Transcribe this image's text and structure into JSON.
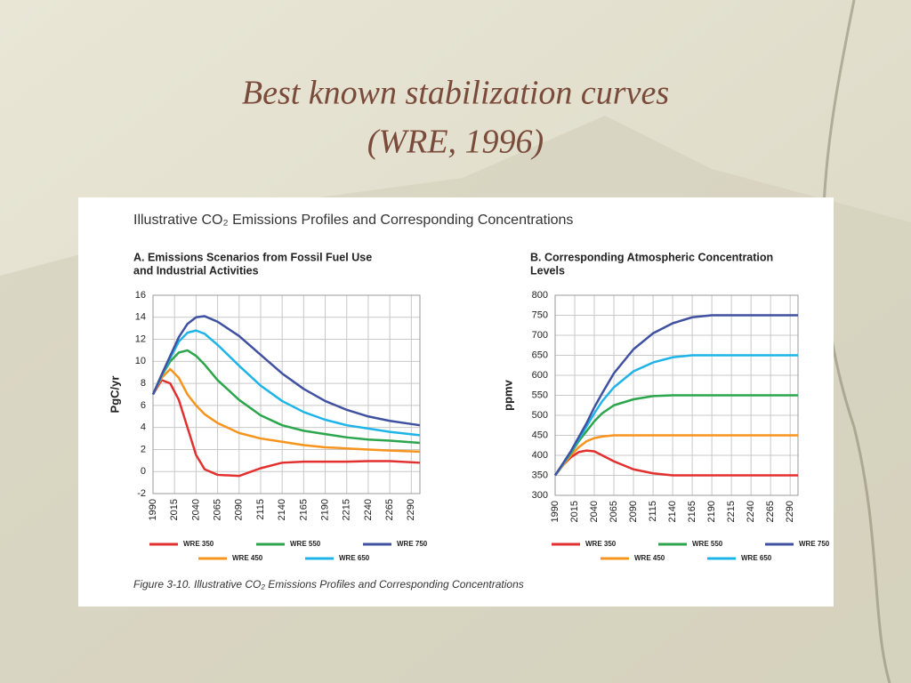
{
  "slide": {
    "title_lines": [
      "Best known stabilization curves",
      "(WRE, 1996)"
    ]
  },
  "figure": {
    "title": "Illustrative CO₂ Emissions Profiles and Corresponding Concentrations",
    "caption": "Figure 3-10.  Illustrative CO₂ Emissions Profiles and Corresponding Concentrations"
  },
  "chart_data": [
    {
      "type": "line",
      "title": [
        "A. Emissions Scenarios from Fossil Fuel Use",
        "and Industrial Activities"
      ],
      "y_label": "PgC/yr",
      "x": [
        1990,
        2000,
        2010,
        2020,
        2030,
        2040,
        2050,
        2065,
        2090,
        2115,
        2140,
        2165,
        2190,
        2215,
        2240,
        2265,
        2300
      ],
      "xlim": [
        1990,
        2300
      ],
      "xticks": [
        1990,
        2015,
        2040,
        2065,
        2090,
        2115,
        2140,
        2165,
        2190,
        2215,
        2240,
        2265,
        2290
      ],
      "ylim": [
        -2,
        16
      ],
      "yticks": [
        -2,
        0,
        2,
        4,
        6,
        8,
        10,
        12,
        14,
        16
      ],
      "grid": true,
      "series": [
        {
          "name": "WRE 350",
          "color": "#e2302f",
          "values": [
            7,
            8.3,
            8.0,
            6.5,
            4,
            1.5,
            0.2,
            -0.3,
            -0.4,
            0.3,
            0.8,
            0.9,
            0.9,
            0.9,
            0.95,
            0.95,
            0.8
          ]
        },
        {
          "name": "WRE 450",
          "color": "#f7941d",
          "values": [
            7,
            8.5,
            9.3,
            8.5,
            7,
            6,
            5.2,
            4.4,
            3.5,
            3,
            2.7,
            2.4,
            2.2,
            2.1,
            2,
            1.9,
            1.8
          ]
        },
        {
          "name": "WRE 550",
          "color": "#2ca64c",
          "values": [
            7,
            8.7,
            10,
            10.8,
            11,
            10.5,
            9.7,
            8.3,
            6.5,
            5.1,
            4.2,
            3.7,
            3.4,
            3.1,
            2.9,
            2.8,
            2.6
          ]
        },
        {
          "name": "WRE 650",
          "color": "#1fb4e8",
          "values": [
            7,
            8.7,
            10.3,
            11.8,
            12.6,
            12.8,
            12.5,
            11.5,
            9.6,
            7.8,
            6.4,
            5.4,
            4.7,
            4.2,
            3.9,
            3.6,
            3.3
          ]
        },
        {
          "name": "WRE 750",
          "color": "#3f51a0",
          "values": [
            7,
            8.8,
            10.5,
            12.2,
            13.4,
            14,
            14.1,
            13.6,
            12.3,
            10.6,
            8.9,
            7.5,
            6.4,
            5.6,
            5,
            4.6,
            4.2
          ]
        }
      ]
    },
    {
      "type": "line",
      "title": [
        "B. Corresponding Atmospheric Concentration",
        "Levels"
      ],
      "y_label": "ppmv",
      "x": [
        1990,
        2000,
        2010,
        2020,
        2030,
        2040,
        2050,
        2065,
        2090,
        2115,
        2140,
        2165,
        2190,
        2215,
        2240,
        2265,
        2300
      ],
      "xlim": [
        1990,
        2300
      ],
      "xticks": [
        1990,
        2015,
        2040,
        2065,
        2090,
        2115,
        2140,
        2165,
        2190,
        2215,
        2240,
        2265,
        2290
      ],
      "ylim": [
        300,
        800
      ],
      "yticks": [
        300,
        350,
        400,
        450,
        500,
        550,
        600,
        650,
        700,
        750,
        800
      ],
      "grid": true,
      "series": [
        {
          "name": "WRE 350",
          "color": "#e2302f",
          "values": [
            350,
            375,
            395,
            408,
            412,
            410,
            400,
            385,
            365,
            355,
            350,
            350,
            350,
            350,
            350,
            350,
            350
          ]
        },
        {
          "name": "WRE 450",
          "color": "#f7941d",
          "values": [
            350,
            375,
            400,
            420,
            435,
            443,
            447,
            450,
            450,
            450,
            450,
            450,
            450,
            450,
            450,
            450,
            450
          ]
        },
        {
          "name": "WRE 550",
          "color": "#2ca64c",
          "values": [
            350,
            378,
            405,
            435,
            460,
            485,
            505,
            525,
            540,
            548,
            550,
            550,
            550,
            550,
            550,
            550,
            550
          ]
        },
        {
          "name": "WRE 650",
          "color": "#1fb4e8",
          "values": [
            350,
            378,
            408,
            440,
            472,
            505,
            535,
            570,
            610,
            632,
            645,
            650,
            650,
            650,
            650,
            650,
            650
          ]
        },
        {
          "name": "WRE 750",
          "color": "#3f51a0",
          "values": [
            350,
            380,
            410,
            445,
            480,
            520,
            555,
            605,
            665,
            705,
            730,
            745,
            750,
            750,
            750,
            750,
            750
          ]
        }
      ]
    }
  ]
}
